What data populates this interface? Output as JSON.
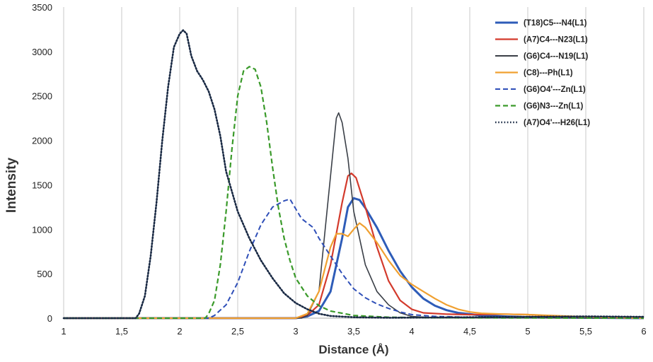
{
  "chart_data": {
    "type": "line",
    "xlabel": "Distance (Å)",
    "ylabel": "Intensity",
    "xlim": [
      1,
      6
    ],
    "ylim": [
      0,
      3500
    ],
    "x_ticks": [
      "1",
      "1,5",
      "2",
      "2,5",
      "3",
      "3,5",
      "4",
      "4,5",
      "5",
      "5,5",
      "6"
    ],
    "y_ticks": [
      "0",
      "500",
      "1000",
      "1500",
      "2000",
      "2500",
      "3000",
      "3500"
    ],
    "grid": "vertical",
    "legend_position": "top-right",
    "series": [
      {
        "name": "(T18)C5---N4(L1)",
        "color": "#2e5cb8",
        "dash": "solid",
        "width": 3,
        "points": [
          [
            1,
            0
          ],
          [
            3.0,
            0
          ],
          [
            3.1,
            20
          ],
          [
            3.2,
            80
          ],
          [
            3.3,
            300
          ],
          [
            3.4,
            900
          ],
          [
            3.45,
            1250
          ],
          [
            3.5,
            1350
          ],
          [
            3.55,
            1330
          ],
          [
            3.6,
            1240
          ],
          [
            3.7,
            1020
          ],
          [
            3.8,
            760
          ],
          [
            3.9,
            530
          ],
          [
            4.0,
            350
          ],
          [
            4.1,
            220
          ],
          [
            4.2,
            140
          ],
          [
            4.3,
            90
          ],
          [
            4.4,
            60
          ],
          [
            4.5,
            45
          ],
          [
            4.6,
            30
          ],
          [
            4.8,
            20
          ],
          [
            5.0,
            12
          ],
          [
            5.5,
            5
          ],
          [
            6,
            0
          ]
        ]
      },
      {
        "name": "(A7)C4---N23(L1)",
        "color": "#d33a2c",
        "dash": "solid",
        "width": 2.2,
        "points": [
          [
            1,
            0
          ],
          [
            3.0,
            0
          ],
          [
            3.1,
            30
          ],
          [
            3.2,
            150
          ],
          [
            3.3,
            600
          ],
          [
            3.4,
            1300
          ],
          [
            3.45,
            1600
          ],
          [
            3.48,
            1630
          ],
          [
            3.52,
            1580
          ],
          [
            3.6,
            1250
          ],
          [
            3.7,
            800
          ],
          [
            3.8,
            420
          ],
          [
            3.9,
            200
          ],
          [
            4.0,
            100
          ],
          [
            4.1,
            60
          ],
          [
            4.3,
            45
          ],
          [
            4.5,
            40
          ],
          [
            4.8,
            45
          ],
          [
            5.0,
            40
          ],
          [
            5.3,
            20
          ],
          [
            5.6,
            8
          ],
          [
            6,
            0
          ]
        ]
      },
      {
        "name": "(G6)C4---N19(L1)",
        "color": "#3a3f47",
        "dash": "solid",
        "width": 1.6,
        "points": [
          [
            1,
            0
          ],
          [
            3.05,
            0
          ],
          [
            3.1,
            30
          ],
          [
            3.2,
            300
          ],
          [
            3.3,
            1600
          ],
          [
            3.35,
            2250
          ],
          [
            3.37,
            2310
          ],
          [
            3.4,
            2200
          ],
          [
            3.45,
            1800
          ],
          [
            3.5,
            1200
          ],
          [
            3.6,
            600
          ],
          [
            3.7,
            300
          ],
          [
            3.8,
            150
          ],
          [
            3.9,
            60
          ],
          [
            4.0,
            20
          ],
          [
            4.2,
            5
          ],
          [
            6,
            0
          ]
        ]
      },
      {
        "name": "(C8)---Ph(L1)",
        "color": "#f0a030",
        "dash": "solid",
        "width": 2.2,
        "points": [
          [
            1,
            0
          ],
          [
            3.0,
            0
          ],
          [
            3.1,
            50
          ],
          [
            3.2,
            300
          ],
          [
            3.3,
            800
          ],
          [
            3.35,
            950
          ],
          [
            3.4,
            950
          ],
          [
            3.45,
            920
          ],
          [
            3.5,
            1000
          ],
          [
            3.55,
            1070
          ],
          [
            3.6,
            1020
          ],
          [
            3.7,
            850
          ],
          [
            3.8,
            650
          ],
          [
            3.9,
            480
          ],
          [
            4.0,
            380
          ],
          [
            4.1,
            300
          ],
          [
            4.2,
            220
          ],
          [
            4.3,
            150
          ],
          [
            4.4,
            100
          ],
          [
            4.5,
            70
          ],
          [
            4.6,
            55
          ],
          [
            4.8,
            45
          ],
          [
            5.0,
            40
          ],
          [
            5.3,
            25
          ],
          [
            5.6,
            10
          ],
          [
            6,
            0
          ]
        ]
      },
      {
        "name": "(G6)O4'---Zn(L1)",
        "color": "#2f4fb8",
        "dash": "long-dash",
        "width": 2,
        "points": [
          [
            1,
            0
          ],
          [
            2.25,
            0
          ],
          [
            2.3,
            30
          ],
          [
            2.4,
            150
          ],
          [
            2.5,
            400
          ],
          [
            2.6,
            750
          ],
          [
            2.7,
            1050
          ],
          [
            2.8,
            1250
          ],
          [
            2.9,
            1320
          ],
          [
            2.95,
            1340
          ],
          [
            3.0,
            1230
          ],
          [
            3.05,
            1120
          ],
          [
            3.1,
            1070
          ],
          [
            3.15,
            1020
          ],
          [
            3.2,
            900
          ],
          [
            3.3,
            700
          ],
          [
            3.4,
            500
          ],
          [
            3.5,
            330
          ],
          [
            3.6,
            230
          ],
          [
            3.7,
            160
          ],
          [
            3.8,
            110
          ],
          [
            3.9,
            70
          ],
          [
            4.0,
            40
          ],
          [
            4.2,
            20
          ],
          [
            4.5,
            10
          ],
          [
            5,
            5
          ],
          [
            6,
            0
          ]
        ]
      },
      {
        "name": "(G6)N3---Zn(L1)",
        "color": "#3a9a2a",
        "dash": "long-dash",
        "width": 2.2,
        "points": [
          [
            1,
            0
          ],
          [
            2.22,
            0
          ],
          [
            2.25,
            50
          ],
          [
            2.3,
            200
          ],
          [
            2.35,
            600
          ],
          [
            2.4,
            1200
          ],
          [
            2.45,
            1900
          ],
          [
            2.5,
            2500
          ],
          [
            2.55,
            2780
          ],
          [
            2.6,
            2830
          ],
          [
            2.65,
            2800
          ],
          [
            2.7,
            2600
          ],
          [
            2.75,
            2200
          ],
          [
            2.8,
            1700
          ],
          [
            2.85,
            1250
          ],
          [
            2.9,
            900
          ],
          [
            2.95,
            650
          ],
          [
            3.0,
            450
          ],
          [
            3.1,
            250
          ],
          [
            3.2,
            140
          ],
          [
            3.3,
            80
          ],
          [
            3.5,
            30
          ],
          [
            3.8,
            10
          ],
          [
            4.2,
            5
          ],
          [
            6,
            0
          ]
        ]
      },
      {
        "name": "(A7)O4'---H26(L1)",
        "color": "#1a2a44",
        "dash": "dotted",
        "width": 2.6,
        "points": [
          [
            1,
            0
          ],
          [
            1.62,
            0
          ],
          [
            1.65,
            50
          ],
          [
            1.7,
            250
          ],
          [
            1.75,
            700
          ],
          [
            1.8,
            1300
          ],
          [
            1.85,
            2000
          ],
          [
            1.9,
            2600
          ],
          [
            1.95,
            3050
          ],
          [
            2.0,
            3200
          ],
          [
            2.03,
            3240
          ],
          [
            2.06,
            3200
          ],
          [
            2.1,
            2950
          ],
          [
            2.15,
            2780
          ],
          [
            2.2,
            2680
          ],
          [
            2.25,
            2550
          ],
          [
            2.3,
            2350
          ],
          [
            2.35,
            2050
          ],
          [
            2.4,
            1650
          ],
          [
            2.5,
            1200
          ],
          [
            2.6,
            900
          ],
          [
            2.7,
            650
          ],
          [
            2.8,
            450
          ],
          [
            2.9,
            280
          ],
          [
            3.0,
            170
          ],
          [
            3.1,
            100
          ],
          [
            3.2,
            50
          ],
          [
            3.3,
            25
          ],
          [
            3.5,
            10
          ],
          [
            3.8,
            5
          ],
          [
            4.5,
            10
          ],
          [
            5,
            15
          ],
          [
            5.5,
            20
          ],
          [
            6,
            15
          ]
        ]
      }
    ]
  }
}
